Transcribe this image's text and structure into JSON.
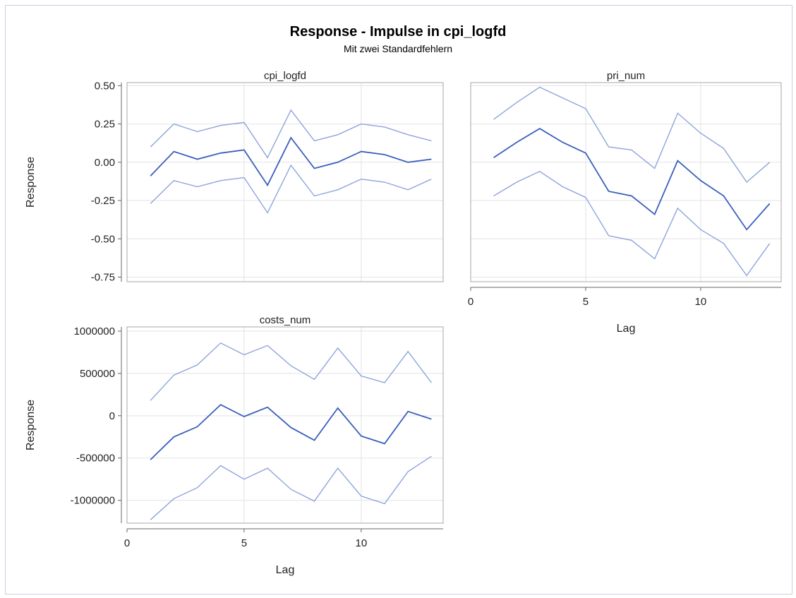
{
  "title": "Response - Impulse in cpi_logfd",
  "subtitle": "Mit zwei Standardfehlern",
  "colors": {
    "estimate": "#3a5fbd",
    "bounds": "#8ea4dc",
    "grid": "#e3e3e3"
  },
  "chart_data": [
    {
      "type": "line",
      "panel_title": "cpi_logfd",
      "ylabel": "Response",
      "xlabel": "",
      "xlim": [
        0,
        13.5
      ],
      "ylim": [
        -0.78,
        0.52
      ],
      "yticks": [
        0.5,
        0.25,
        0.0,
        -0.25,
        -0.5,
        -0.75
      ],
      "ytick_labels": [
        "0.50",
        "0.25",
        "0.00",
        "-0.25",
        "-0.50",
        "-0.75"
      ],
      "xticks": [],
      "x": [
        1,
        2,
        3,
        4,
        5,
        6,
        7,
        8,
        9,
        10,
        11,
        12,
        13
      ],
      "series": [
        {
          "values": [
            0.1,
            0.25,
            0.2,
            0.24,
            0.26,
            0.03,
            0.34,
            0.14,
            0.18,
            0.25,
            0.23,
            0.18,
            0.14
          ]
        },
        {
          "values": [
            -0.09,
            0.07,
            0.02,
            0.06,
            0.08,
            -0.15,
            0.16,
            -0.04,
            0.0,
            0.07,
            0.05,
            0.0,
            0.02
          ]
        },
        {
          "values": [
            -0.27,
            -0.12,
            -0.16,
            -0.12,
            -0.1,
            -0.33,
            -0.02,
            -0.22,
            -0.18,
            -0.11,
            -0.13,
            -0.18,
            -0.11
          ]
        }
      ]
    },
    {
      "type": "line",
      "panel_title": "pri_num",
      "ylabel": "",
      "xlabel": "Lag",
      "xlim": [
        0,
        13.5
      ],
      "ylim": [
        -0.78,
        0.52
      ],
      "yticks": [],
      "ytick_labels": [],
      "xticks": [
        0,
        5,
        10
      ],
      "x": [
        1,
        2,
        3,
        4,
        5,
        6,
        7,
        8,
        9,
        10,
        11,
        12,
        13
      ],
      "series": [
        {
          "values": [
            0.28,
            0.39,
            0.49,
            0.42,
            0.35,
            0.1,
            0.08,
            -0.04,
            0.32,
            0.19,
            0.09,
            -0.13,
            0.0
          ]
        },
        {
          "values": [
            0.03,
            0.13,
            0.22,
            0.13,
            0.06,
            -0.19,
            -0.22,
            -0.34,
            0.01,
            -0.12,
            -0.22,
            -0.44,
            -0.27
          ]
        },
        {
          "values": [
            -0.22,
            -0.13,
            -0.06,
            -0.16,
            -0.23,
            -0.48,
            -0.51,
            -0.63,
            -0.3,
            -0.44,
            -0.53,
            -0.74,
            -0.53
          ]
        }
      ]
    },
    {
      "type": "line",
      "panel_title": "costs_num",
      "ylabel": "Response",
      "xlabel": "Lag",
      "xlim": [
        0,
        13.5
      ],
      "ylim": [
        -1270000,
        1050000
      ],
      "yticks": [
        1000000,
        500000,
        0,
        -500000,
        -1000000
      ],
      "ytick_labels": [
        "1000000",
        "500000",
        "0",
        "-500000",
        "-1000000"
      ],
      "xticks": [
        0,
        5,
        10
      ],
      "x": [
        1,
        2,
        3,
        4,
        5,
        6,
        7,
        8,
        9,
        10,
        11,
        12,
        13
      ],
      "series": [
        {
          "values": [
            180000,
            480000,
            600000,
            860000,
            720000,
            830000,
            590000,
            430000,
            800000,
            470000,
            390000,
            760000,
            390000
          ]
        },
        {
          "values": [
            -520000,
            -250000,
            -130000,
            130000,
            -10000,
            100000,
            -140000,
            -290000,
            90000,
            -240000,
            -330000,
            50000,
            -40000
          ]
        },
        {
          "values": [
            -1230000,
            -980000,
            -850000,
            -590000,
            -750000,
            -620000,
            -870000,
            -1010000,
            -620000,
            -950000,
            -1040000,
            -660000,
            -480000
          ]
        }
      ]
    }
  ]
}
